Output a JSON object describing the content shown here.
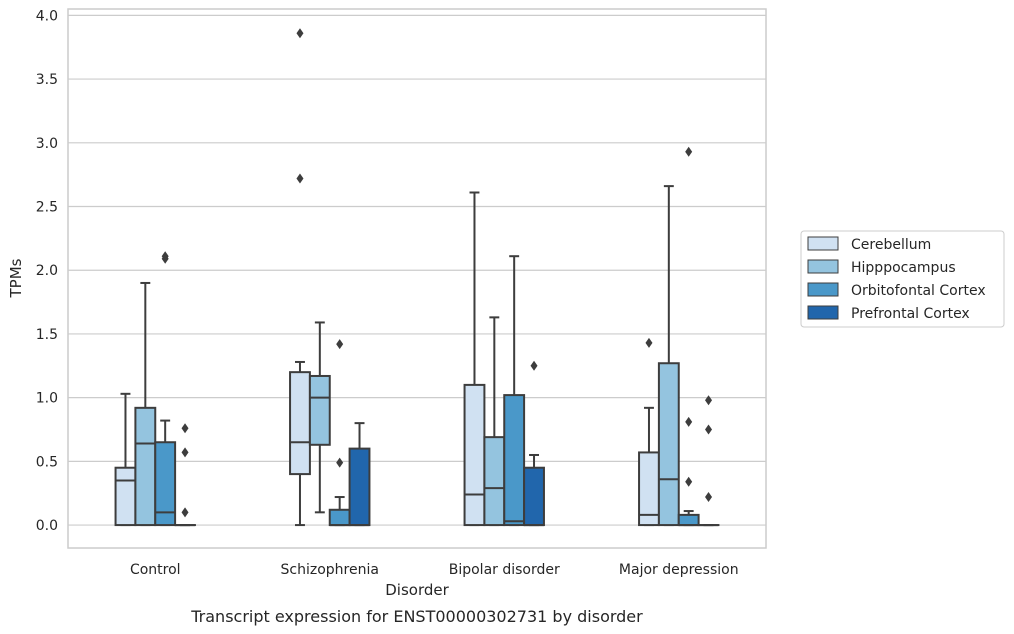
{
  "chart_data": {
    "type": "box",
    "title": "",
    "caption": "Transcript expression for ENST00000302731 by disorder",
    "xlabel": "Disorder",
    "ylabel": "TPMs",
    "ylim": [
      -0.18,
      4.05
    ],
    "yticks": [
      0.0,
      0.5,
      1.0,
      1.5,
      2.0,
      2.5,
      3.0,
      3.5,
      4.0
    ],
    "ytick_labels": [
      "0.0",
      "0.5",
      "1.0",
      "1.5",
      "2.0",
      "2.5",
      "3.0",
      "3.5",
      "4.0"
    ],
    "grid": "horizontal",
    "legend_position": "right",
    "categories": [
      "Control",
      "Schizophrenia",
      "Bipolar disorder",
      "Major depression"
    ],
    "series": [
      {
        "name": "Cerebellum",
        "color": "#d0e1f2",
        "boxes": [
          {
            "whislo": 0.0,
            "q1": 0.0,
            "med": 0.35,
            "q3": 0.45,
            "whishi": 1.03,
            "fliers": []
          },
          {
            "whislo": 0.0,
            "q1": 0.4,
            "med": 0.65,
            "q3": 1.2,
            "whishi": 1.28,
            "fliers": [
              2.72,
              3.86
            ]
          },
          {
            "whislo": 0.0,
            "q1": 0.0,
            "med": 0.24,
            "q3": 1.1,
            "whishi": 2.61,
            "fliers": []
          },
          {
            "whislo": 0.0,
            "q1": 0.0,
            "med": 0.08,
            "q3": 0.57,
            "whishi": 0.92,
            "fliers": [
              1.43
            ]
          }
        ]
      },
      {
        "name": "Hipppocampus",
        "color": "#94c4df",
        "boxes": [
          {
            "whislo": 0.0,
            "q1": 0.0,
            "med": 0.64,
            "q3": 0.92,
            "whishi": 1.9,
            "fliers": []
          },
          {
            "whislo": 0.1,
            "q1": 0.63,
            "med": 1.0,
            "q3": 1.17,
            "whishi": 1.59,
            "fliers": []
          },
          {
            "whislo": 0.0,
            "q1": 0.0,
            "med": 0.29,
            "q3": 0.69,
            "whishi": 1.63,
            "fliers": []
          },
          {
            "whislo": 0.0,
            "q1": 0.0,
            "med": 0.36,
            "q3": 1.27,
            "whishi": 2.66,
            "fliers": []
          }
        ]
      },
      {
        "name": "Orbitofontal Cortex",
        "color": "#4a98c9",
        "boxes": [
          {
            "whislo": 0.0,
            "q1": 0.0,
            "med": 0.1,
            "q3": 0.65,
            "whishi": 0.82,
            "fliers": [
              2.09,
              2.11
            ]
          },
          {
            "whislo": 0.0,
            "q1": 0.0,
            "med": 0.0,
            "q3": 0.12,
            "whishi": 0.22,
            "fliers": [
              0.49,
              1.42
            ]
          },
          {
            "whislo": 0.0,
            "q1": 0.0,
            "med": 0.03,
            "q3": 1.02,
            "whishi": 2.11,
            "fliers": []
          },
          {
            "whislo": 0.0,
            "q1": 0.0,
            "med": 0.0,
            "q3": 0.08,
            "whishi": 0.11,
            "fliers": [
              0.34,
              0.81,
              2.93
            ]
          }
        ]
      },
      {
        "name": "Prefrontal Cortex",
        "color": "#2166ac",
        "boxes": [
          {
            "whislo": 0.0,
            "q1": 0.0,
            "med": 0.0,
            "q3": 0.0,
            "whishi": 0.0,
            "fliers": [
              0.1,
              0.57,
              0.76
            ]
          },
          {
            "whislo": 0.0,
            "q1": 0.0,
            "med": 0.0,
            "q3": 0.6,
            "whishi": 0.8,
            "fliers": []
          },
          {
            "whislo": 0.0,
            "q1": 0.0,
            "med": 0.0,
            "q3": 0.45,
            "whishi": 0.55,
            "fliers": [
              1.25
            ]
          },
          {
            "whislo": 0.0,
            "q1": 0.0,
            "med": 0.0,
            "q3": 0.0,
            "whishi": 0.0,
            "fliers": [
              0.22,
              0.75,
              0.98
            ]
          }
        ]
      }
    ],
    "colors": {
      "grid": "#cccccc",
      "frame": "#cccccc",
      "box_edge": "#3d3d3d",
      "text": "#262626",
      "background": "#ffffff"
    }
  }
}
